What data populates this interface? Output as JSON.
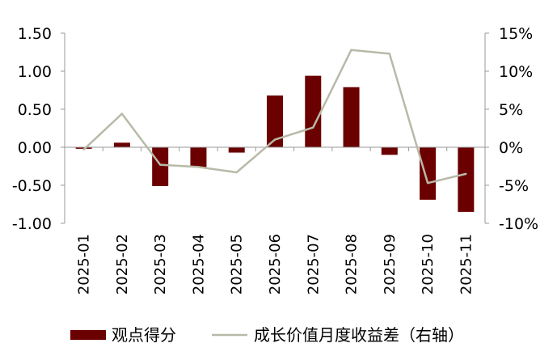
{
  "chart_data": {
    "type": "bar+line",
    "categories": [
      "2025-01",
      "2025-02",
      "2025-03",
      "2025-04",
      "2025-05",
      "2025-06",
      "2025-07",
      "2025-08",
      "2025-09",
      "2025-10",
      "2025-11"
    ],
    "series": [
      {
        "name": "观点得分",
        "type": "bar",
        "axis": "left",
        "color": "#6b0000",
        "values": [
          -0.02,
          0.06,
          -0.51,
          -0.26,
          -0.07,
          0.68,
          0.94,
          0.79,
          -0.1,
          -0.69,
          -0.85
        ]
      },
      {
        "name": "成长价值月度收益差（右轴）",
        "type": "line",
        "axis": "right",
        "color": "#b8baa8",
        "values": [
          -0.3,
          4.4,
          -2.3,
          -2.6,
          -3.3,
          1.0,
          2.6,
          12.8,
          12.3,
          -4.7,
          -3.5
        ]
      }
    ],
    "y_left": {
      "ylim": [
        -1.0,
        1.5
      ],
      "ticks": [
        "1.50",
        "1.00",
        "0.50",
        "0.00",
        "-0.50",
        "-1.00"
      ]
    },
    "y_right": {
      "ylim": [
        -10,
        15
      ],
      "ticks": [
        "15%",
        "10%",
        "5%",
        "0%",
        "-5%",
        "-10%"
      ]
    },
    "grid": false,
    "legend_position": "bottom"
  }
}
